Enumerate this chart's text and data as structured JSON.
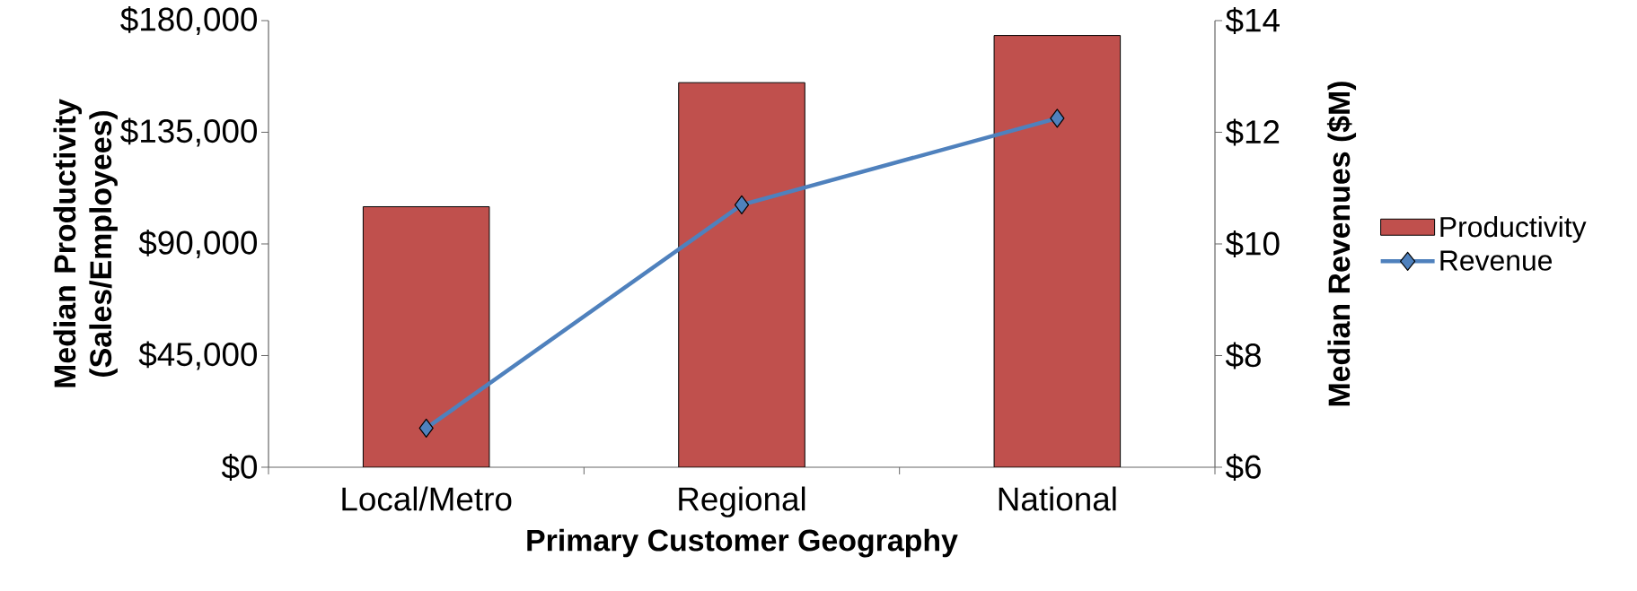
{
  "chart_data": {
    "type": "bar",
    "xlabel": "Primary Customer Geography",
    "ylabel": "Median Productivity (Sales/Employees)",
    "y2label": "Median Revenues ($M)",
    "categories": [
      "Local/Metro",
      "Regional",
      "National"
    ],
    "series": [
      {
        "name": "Productivity",
        "color": "#c0504d",
        "values": [
          105000,
          155000,
          174000
        ]
      },
      {
        "name": "Revenue",
        "type": "line",
        "axis": "y2",
        "color": "#4f81bd",
        "values": [
          6.7,
          10.7,
          12.25
        ]
      }
    ],
    "marker": "diamond",
    "legend": "right",
    "ylim": [
      0,
      180000
    ],
    "yticks": [
      {
        "value": 0,
        "label": "$0"
      },
      {
        "value": 45000,
        "label": "$45,000"
      },
      {
        "value": 90000,
        "label": "$90,000"
      },
      {
        "value": 135000,
        "label": "$135,000"
      },
      {
        "value": 180000,
        "label": "$180,000"
      }
    ],
    "y2lim": [
      6,
      14
    ],
    "y2ticks": [
      {
        "value": 6,
        "label": "$6"
      },
      {
        "value": 8,
        "label": "$8"
      },
      {
        "value": 10,
        "label": "$10"
      },
      {
        "value": 12,
        "label": "$12"
      },
      {
        "value": 14,
        "label": "$14"
      }
    ]
  }
}
